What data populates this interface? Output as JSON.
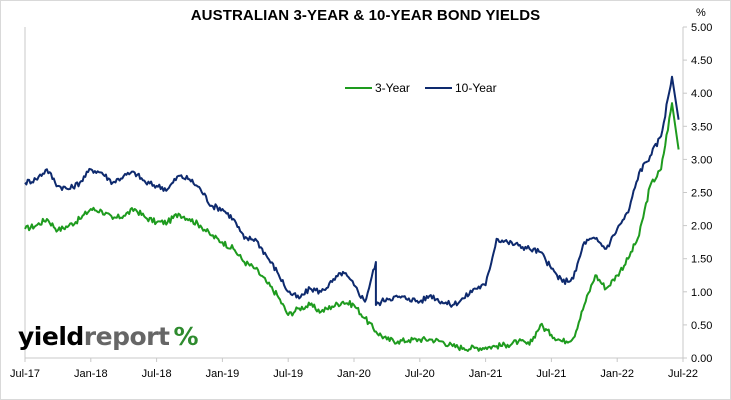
{
  "chart_data": {
    "type": "line",
    "title": "AUSTRALIAN 3-YEAR & 10-YEAR BOND YIELDS",
    "y_unit": "%",
    "ylim": [
      0,
      5
    ],
    "y_ticks": [
      "0.00",
      "0.50",
      "1.00",
      "1.50",
      "2.00",
      "2.50",
      "3.00",
      "3.50",
      "4.00",
      "4.50",
      "5.00"
    ],
    "x_ticks": [
      "Jul-17",
      "Jan-18",
      "Jul-18",
      "Jan-19",
      "Jul-19",
      "Jan-20",
      "Jul-20",
      "Jan-21",
      "Jul-21",
      "Jan-22",
      "Jul-22"
    ],
    "x_range": [
      "2017-07",
      "2022-07"
    ],
    "legend_position": "top-center",
    "grid": false,
    "series": [
      {
        "name": "3-Year",
        "color": "#1e9b1e",
        "points": [
          [
            "2017-07",
            1.95
          ],
          [
            "2017-08",
            2.0
          ],
          [
            "2017-09",
            2.1
          ],
          [
            "2017-10",
            1.93
          ],
          [
            "2017-11",
            2.0
          ],
          [
            "2017-12",
            2.1
          ],
          [
            "2018-01",
            2.25
          ],
          [
            "2018-02",
            2.22
          ],
          [
            "2018-03",
            2.1
          ],
          [
            "2018-04",
            2.15
          ],
          [
            "2018-05",
            2.25
          ],
          [
            "2018-06",
            2.12
          ],
          [
            "2018-07",
            2.05
          ],
          [
            "2018-08",
            2.05
          ],
          [
            "2018-09",
            2.18
          ],
          [
            "2018-10",
            2.1
          ],
          [
            "2018-11",
            2.0
          ],
          [
            "2018-12",
            1.85
          ],
          [
            "2019-01",
            1.75
          ],
          [
            "2019-02",
            1.65
          ],
          [
            "2019-03",
            1.45
          ],
          [
            "2019-04",
            1.35
          ],
          [
            "2019-05",
            1.15
          ],
          [
            "2019-06",
            0.95
          ],
          [
            "2019-07",
            0.65
          ],
          [
            "2019-08",
            0.75
          ],
          [
            "2019-09",
            0.8
          ],
          [
            "2019-10",
            0.7
          ],
          [
            "2019-11",
            0.78
          ],
          [
            "2019-12",
            0.85
          ],
          [
            "2020-01",
            0.8
          ],
          [
            "2020-02",
            0.6
          ],
          [
            "2020-03",
            0.4
          ],
          [
            "2020-04",
            0.28
          ],
          [
            "2020-05",
            0.25
          ],
          [
            "2020-06",
            0.27
          ],
          [
            "2020-07",
            0.28
          ],
          [
            "2020-08",
            0.28
          ],
          [
            "2020-09",
            0.25
          ],
          [
            "2020-10",
            0.18
          ],
          [
            "2020-11",
            0.15
          ],
          [
            "2020-12",
            0.15
          ],
          [
            "2021-01",
            0.16
          ],
          [
            "2021-02",
            0.18
          ],
          [
            "2021-03",
            0.2
          ],
          [
            "2021-04",
            0.25
          ],
          [
            "2021-05",
            0.2
          ],
          [
            "2021-06",
            0.5
          ],
          [
            "2021-07",
            0.35
          ],
          [
            "2021-08",
            0.25
          ],
          [
            "2021-09",
            0.3
          ],
          [
            "2021-10",
            0.8
          ],
          [
            "2021-11",
            1.25
          ],
          [
            "2021-12",
            1.05
          ],
          [
            "2022-01",
            1.25
          ],
          [
            "2022-02",
            1.5
          ],
          [
            "2022-03",
            1.85
          ],
          [
            "2022-04",
            2.6
          ],
          [
            "2022-05",
            2.85
          ],
          [
            "2022-06",
            3.85
          ],
          [
            "2022-06",
            3.15
          ]
        ]
      },
      {
        "name": "10-Year",
        "color": "#0e2a6e",
        "points": [
          [
            "2017-07",
            2.65
          ],
          [
            "2017-08",
            2.7
          ],
          [
            "2017-09",
            2.85
          ],
          [
            "2017-10",
            2.6
          ],
          [
            "2017-11",
            2.55
          ],
          [
            "2017-12",
            2.65
          ],
          [
            "2018-01",
            2.85
          ],
          [
            "2018-02",
            2.8
          ],
          [
            "2018-03",
            2.65
          ],
          [
            "2018-04",
            2.75
          ],
          [
            "2018-05",
            2.8
          ],
          [
            "2018-06",
            2.65
          ],
          [
            "2018-07",
            2.6
          ],
          [
            "2018-08",
            2.55
          ],
          [
            "2018-09",
            2.75
          ],
          [
            "2018-10",
            2.7
          ],
          [
            "2018-11",
            2.55
          ],
          [
            "2018-12",
            2.3
          ],
          [
            "2019-01",
            2.25
          ],
          [
            "2019-02",
            2.1
          ],
          [
            "2019-03",
            1.8
          ],
          [
            "2019-04",
            1.8
          ],
          [
            "2019-05",
            1.55
          ],
          [
            "2019-06",
            1.3
          ],
          [
            "2019-07",
            1.0
          ],
          [
            "2019-08",
            0.9
          ],
          [
            "2019-09",
            1.05
          ],
          [
            "2019-10",
            1.0
          ],
          [
            "2019-11",
            1.15
          ],
          [
            "2019-12",
            1.3
          ],
          [
            "2020-01",
            1.1
          ],
          [
            "2020-02",
            0.85
          ],
          [
            "2020-03",
            1.45
          ],
          [
            "2020-03",
            0.8
          ],
          [
            "2020-04",
            0.9
          ],
          [
            "2020-05",
            0.92
          ],
          [
            "2020-06",
            0.9
          ],
          [
            "2020-07",
            0.85
          ],
          [
            "2020-08",
            0.95
          ],
          [
            "2020-09",
            0.85
          ],
          [
            "2020-10",
            0.8
          ],
          [
            "2020-11",
            0.9
          ],
          [
            "2020-12",
            1.05
          ],
          [
            "2021-01",
            1.1
          ],
          [
            "2021-02",
            1.8
          ],
          [
            "2021-03",
            1.75
          ],
          [
            "2021-04",
            1.7
          ],
          [
            "2021-05",
            1.65
          ],
          [
            "2021-06",
            1.6
          ],
          [
            "2021-07",
            1.35
          ],
          [
            "2021-08",
            1.15
          ],
          [
            "2021-09",
            1.2
          ],
          [
            "2021-10",
            1.75
          ],
          [
            "2021-11",
            1.8
          ],
          [
            "2021-12",
            1.65
          ],
          [
            "2022-01",
            1.95
          ],
          [
            "2022-02",
            2.2
          ],
          [
            "2022-03",
            2.8
          ],
          [
            "2022-04",
            3.05
          ],
          [
            "2022-05",
            3.35
          ],
          [
            "2022-06",
            4.25
          ],
          [
            "2022-06",
            3.6
          ]
        ]
      }
    ]
  },
  "branding": {
    "word1": "yield",
    "word2": "report",
    "symbol": "%"
  }
}
